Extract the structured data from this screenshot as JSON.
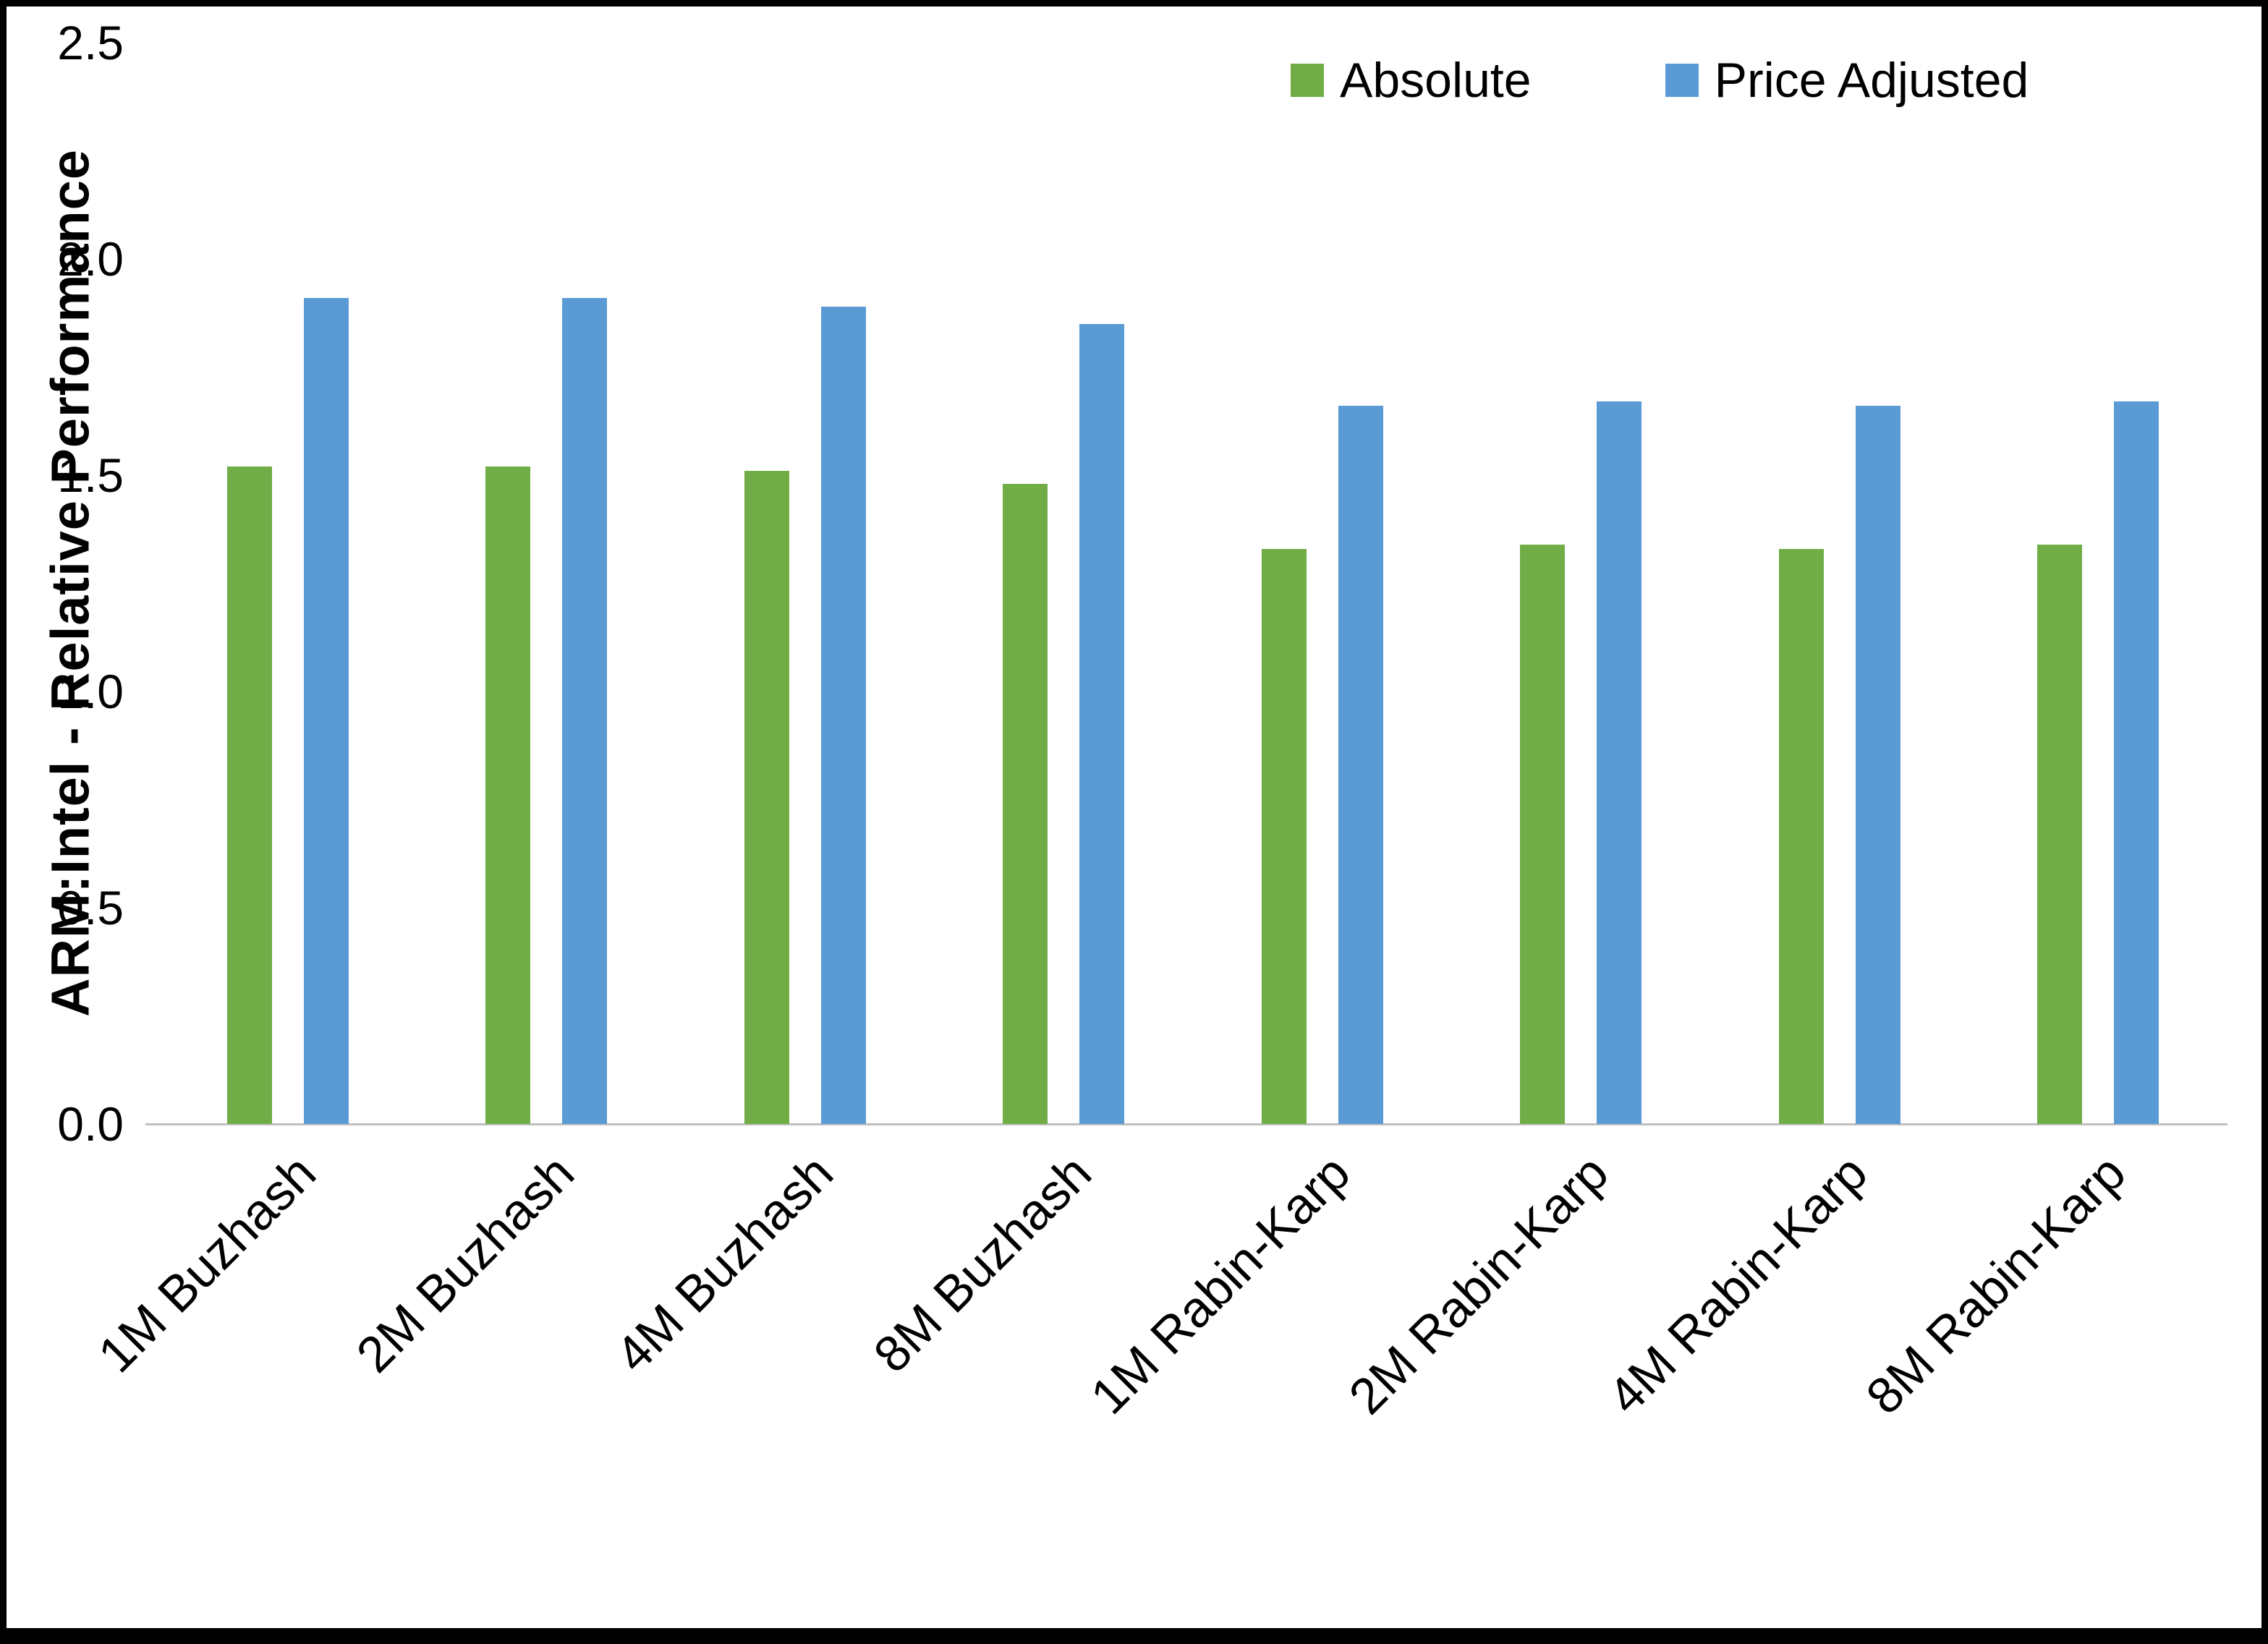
{
  "chart_data": {
    "type": "bar",
    "title": "",
    "xlabel": "",
    "ylabel": "ARM:Intel - Relative Performance",
    "ylim": [
      0,
      2.5
    ],
    "yticks": [
      0,
      0.5,
      1,
      1.5,
      2,
      2.5
    ],
    "ytick_labels": [
      "0.0",
      "0.5",
      "1.0",
      "1.5",
      "2.0",
      "2.5"
    ],
    "grid": false,
    "legend_position": "top-right",
    "categories": [
      "1M Buzhash",
      "2M Buzhash",
      "4M Buzhash",
      "8M Buzhash",
      "1M Rabin-Karp",
      "2M Rabin-Karp",
      "4M Rabin-Karp",
      "8M Rabin-Karp"
    ],
    "series": [
      {
        "name": "Absolute",
        "color": "#70AD47",
        "values": [
          1.52,
          1.52,
          1.51,
          1.48,
          1.33,
          1.34,
          1.33,
          1.34
        ]
      },
      {
        "name": "Price Adjusted",
        "color": "#5B9BD5",
        "values": [
          1.91,
          1.91,
          1.89,
          1.85,
          1.66,
          1.67,
          1.66,
          1.67
        ]
      }
    ],
    "colors": {
      "axis_line": "#BFBFBF",
      "text": "#000000",
      "background": "#FFFFFF",
      "border": "#000000"
    }
  }
}
